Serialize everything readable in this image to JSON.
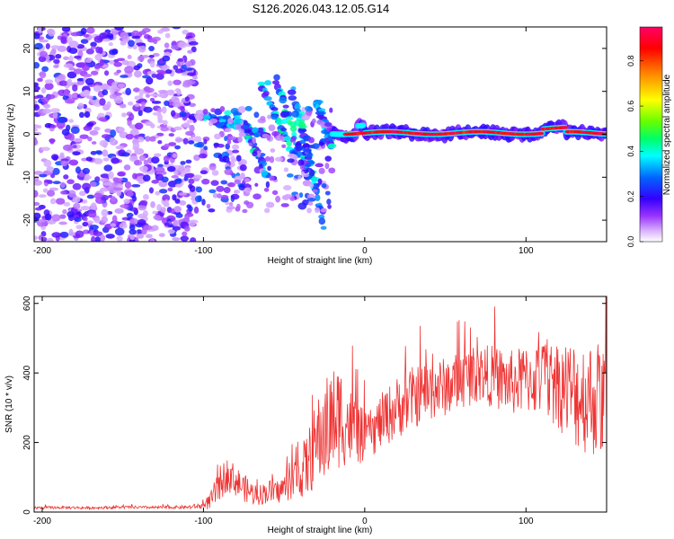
{
  "title": "S126.2026.043.12.05.G14",
  "chart_data": [
    {
      "type": "heatmap",
      "xlabel": "Height of straight line (km)",
      "ylabel": "Frequency (Hz)",
      "xlim": [
        -205,
        150
      ],
      "ylim": [
        -25,
        25
      ],
      "xticks": [
        -200,
        -100,
        0,
        100
      ],
      "yticks": [
        -20,
        -10,
        0,
        10,
        20
      ],
      "colorbar": {
        "label": "Normalized spectral amplitude",
        "range": [
          0,
          0.95
        ],
        "ticks": [
          0.0,
          0.2,
          0.4,
          0.6,
          0.8
        ],
        "colors": [
          "#ffffff",
          "#d9b3ff",
          "#9933ff",
          "#3300ff",
          "#0066ff",
          "#00ffff",
          "#00ff66",
          "#66ff00",
          "#ffff00",
          "#ff8800",
          "#ff0000",
          "#ff0066"
        ]
      },
      "features": [
        {
          "region": "noise",
          "x_range": [
            -205,
            -105
          ],
          "freq_range": [
            -25,
            25
          ],
          "amplitude": [
            0.05,
            0.25
          ]
        },
        {
          "region": "multipath",
          "x_range": [
            -105,
            -20
          ],
          "freq_range": [
            -22,
            13
          ],
          "amplitude": [
            0.15,
            0.45
          ]
        },
        {
          "region": "coherent_tone",
          "x_range": [
            -20,
            150
          ],
          "freq_range": [
            -1,
            3
          ],
          "amplitude": [
            0.8,
            0.95
          ]
        }
      ]
    },
    {
      "type": "line",
      "xlabel": "Height of straight line (km)",
      "ylabel": "SNR (10 * v/v)",
      "xlim": [
        -205,
        150
      ],
      "ylim": [
        0,
        620
      ],
      "xticks": [
        -200,
        -100,
        0,
        100
      ],
      "yticks": [
        0,
        200,
        400,
        600
      ],
      "series": [
        {
          "name": "SNR",
          "color": "#ee3333",
          "x": [
            -205,
            -190,
            -170,
            -150,
            -130,
            -110,
            -100,
            -95,
            -90,
            -85,
            -80,
            -75,
            -70,
            -65,
            -60,
            -55,
            -50,
            -45,
            -40,
            -35,
            -30,
            -25,
            -20,
            -15,
            -10,
            -5,
            0,
            5,
            10,
            20,
            30,
            40,
            50,
            60,
            70,
            80,
            90,
            100,
            110,
            120,
            130,
            140,
            150
          ],
          "y": [
            12,
            13,
            12,
            14,
            13,
            14,
            18,
            35,
            80,
            110,
            90,
            70,
            55,
            50,
            60,
            55,
            70,
            90,
            110,
            140,
            200,
            230,
            260,
            280,
            250,
            230,
            215,
            230,
            260,
            300,
            330,
            350,
            360,
            380,
            400,
            390,
            370,
            380,
            385,
            370,
            340,
            330,
            320
          ],
          "spread": [
            4,
            4,
            4,
            4,
            4,
            5,
            10,
            30,
            50,
            50,
            45,
            40,
            35,
            30,
            35,
            35,
            40,
            55,
            70,
            100,
            120,
            150,
            160,
            150,
            120,
            100,
            70,
            70,
            80,
            90,
            90,
            90,
            85,
            85,
            85,
            90,
            95,
            100,
            110,
            130,
            160,
            170,
            170
          ]
        }
      ]
    }
  ]
}
